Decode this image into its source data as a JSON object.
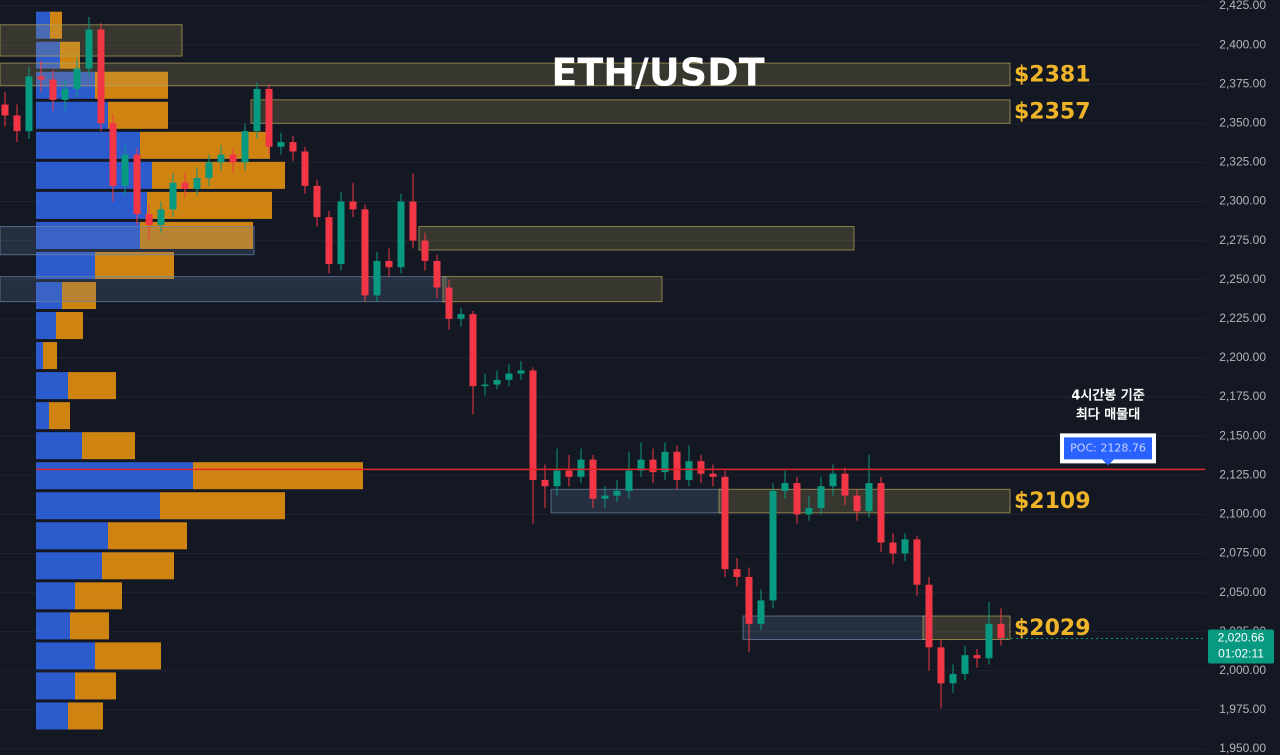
{
  "chart_data": {
    "type": "candlestick",
    "title": "ETH/USDT",
    "ylim": [
      1950,
      2425
    ],
    "yticks": [
      {
        "value": 2425,
        "label": "2,425.00"
      },
      {
        "value": 2400,
        "label": "2,400.00"
      },
      {
        "value": 2375,
        "label": "2,375.00"
      },
      {
        "value": 2350,
        "label": "2,350.00"
      },
      {
        "value": 2325,
        "label": "2,325.00"
      },
      {
        "value": 2300,
        "label": "2,300.00"
      },
      {
        "value": 2275,
        "label": "2,275.00"
      },
      {
        "value": 2250,
        "label": "2,250.00"
      },
      {
        "value": 2225,
        "label": "2,225.00"
      },
      {
        "value": 2200,
        "label": "2,200.00"
      },
      {
        "value": 2175,
        "label": "2,175.00"
      },
      {
        "value": 2150,
        "label": "2,150.00"
      },
      {
        "value": 2125,
        "label": "2,125.00"
      },
      {
        "value": 2100,
        "label": "2,100.00"
      },
      {
        "value": 2075,
        "label": "2,075.00"
      },
      {
        "value": 2050,
        "label": "2,050.00"
      },
      {
        "value": 2025,
        "label": "2,025.00"
      },
      {
        "value": 2000,
        "label": "2,000.00"
      },
      {
        "value": 1975,
        "label": "1,975.00"
      },
      {
        "value": 1950,
        "label": "1,950.00"
      }
    ],
    "grid": true,
    "up_color": "#089981",
    "down_color": "#f23645",
    "ohlc": [
      [
        2362,
        2370,
        2348,
        2355
      ],
      [
        2355,
        2362,
        2338,
        2345
      ],
      [
        2345,
        2386,
        2340,
        2380
      ],
      [
        2380,
        2390,
        2370,
        2378
      ],
      [
        2378,
        2384,
        2358,
        2365
      ],
      [
        2365,
        2378,
        2358,
        2372
      ],
      [
        2372,
        2392,
        2366,
        2385
      ],
      [
        2385,
        2418,
        2380,
        2410
      ],
      [
        2410,
        2414,
        2345,
        2350
      ],
      [
        2350,
        2356,
        2300,
        2310
      ],
      [
        2310,
        2336,
        2304,
        2330
      ],
      [
        2330,
        2334,
        2285,
        2292
      ],
      [
        2292,
        2298,
        2276,
        2285
      ],
      [
        2285,
        2300,
        2280,
        2295
      ],
      [
        2295,
        2318,
        2290,
        2312
      ],
      [
        2312,
        2318,
        2302,
        2308
      ],
      [
        2308,
        2322,
        2304,
        2315
      ],
      [
        2315,
        2330,
        2310,
        2325
      ],
      [
        2325,
        2336,
        2320,
        2330
      ],
      [
        2330,
        2334,
        2318,
        2325
      ],
      [
        2325,
        2350,
        2320,
        2345
      ],
      [
        2345,
        2376,
        2340,
        2372
      ],
      [
        2372,
        2375,
        2330,
        2335
      ],
      [
        2335,
        2344,
        2330,
        2338
      ],
      [
        2338,
        2342,
        2326,
        2332
      ],
      [
        2332,
        2335,
        2305,
        2310
      ],
      [
        2310,
        2314,
        2284,
        2290
      ],
      [
        2290,
        2294,
        2254,
        2260
      ],
      [
        2260,
        2306,
        2256,
        2300
      ],
      [
        2300,
        2312,
        2290,
        2295
      ],
      [
        2295,
        2298,
        2236,
        2240
      ],
      [
        2240,
        2268,
        2236,
        2262
      ],
      [
        2262,
        2270,
        2252,
        2258
      ],
      [
        2258,
        2305,
        2254,
        2300
      ],
      [
        2300,
        2318,
        2270,
        2275
      ],
      [
        2275,
        2280,
        2256,
        2262
      ],
      [
        2262,
        2266,
        2238,
        2245
      ],
      [
        2245,
        2250,
        2218,
        2225
      ],
      [
        2225,
        2232,
        2220,
        2228
      ],
      [
        2228,
        2230,
        2164,
        2182
      ],
      [
        2182,
        2190,
        2176,
        2183
      ],
      [
        2183,
        2192,
        2180,
        2186
      ],
      [
        2186,
        2196,
        2182,
        2190
      ],
      [
        2190,
        2198,
        2186,
        2192
      ],
      [
        2192,
        2194,
        2094,
        2122
      ],
      [
        2122,
        2132,
        2104,
        2118
      ],
      [
        2118,
        2142,
        2112,
        2128
      ],
      [
        2128,
        2138,
        2118,
        2124
      ],
      [
        2124,
        2142,
        2120,
        2135
      ],
      [
        2135,
        2138,
        2104,
        2110
      ],
      [
        2110,
        2118,
        2104,
        2112
      ],
      [
        2112,
        2122,
        2108,
        2115
      ],
      [
        2115,
        2140,
        2110,
        2128
      ],
      [
        2128,
        2146,
        2124,
        2135
      ],
      [
        2135,
        2142,
        2120,
        2127
      ],
      [
        2127,
        2146,
        2122,
        2140
      ],
      [
        2140,
        2144,
        2116,
        2122
      ],
      [
        2122,
        2144,
        2118,
        2134
      ],
      [
        2134,
        2138,
        2120,
        2126
      ],
      [
        2126,
        2132,
        2118,
        2124
      ],
      [
        2124,
        2128,
        2060,
        2065
      ],
      [
        2065,
        2072,
        2054,
        2060
      ],
      [
        2060,
        2066,
        2012,
        2030
      ],
      [
        2030,
        2052,
        2026,
        2045
      ],
      [
        2045,
        2120,
        2040,
        2115
      ],
      [
        2115,
        2128,
        2110,
        2120
      ],
      [
        2120,
        2124,
        2094,
        2100
      ],
      [
        2100,
        2112,
        2096,
        2104
      ],
      [
        2104,
        2124,
        2100,
        2118
      ],
      [
        2118,
        2132,
        2112,
        2126
      ],
      [
        2126,
        2130,
        2106,
        2112
      ],
      [
        2112,
        2116,
        2096,
        2102
      ],
      [
        2102,
        2138,
        2098,
        2120
      ],
      [
        2120,
        2124,
        2076,
        2082
      ],
      [
        2082,
        2088,
        2068,
        2075
      ],
      [
        2075,
        2088,
        2070,
        2084
      ],
      [
        2084,
        2086,
        2048,
        2055
      ],
      [
        2055,
        2060,
        2000,
        2015
      ],
      [
        2015,
        2020,
        1976,
        1992
      ],
      [
        1992,
        2004,
        1986,
        1998
      ],
      [
        1998,
        2016,
        1994,
        2010
      ],
      [
        2010,
        2014,
        2002,
        2008
      ],
      [
        2008,
        2044,
        2004,
        2030
      ],
      [
        2030,
        2040,
        2016,
        2020.66
      ]
    ],
    "profile": {
      "bins": [
        2422,
        2402.8,
        2383.6,
        2364.4,
        2345.2,
        2326,
        2306.8,
        2287.6,
        2268.4,
        2249.2,
        2230,
        2210.8,
        2191.6,
        2172.4,
        2153.2,
        2134,
        2114.8,
        2095.6,
        2076.4,
        2057.2,
        2038,
        2018.8,
        1999.6,
        1980.4,
        1961.2
      ],
      "buy": [
        14,
        24,
        59,
        72,
        104,
        116,
        111,
        104,
        59,
        26,
        20,
        7,
        32,
        13,
        46,
        157,
        124,
        72,
        66,
        39,
        34,
        59,
        39,
        32
      ],
      "sell": [
        12,
        20,
        73,
        60,
        130,
        133,
        125,
        113,
        79,
        34,
        27,
        14,
        48,
        21,
        53,
        170,
        125,
        79,
        72,
        47,
        39,
        66,
        41,
        35
      ],
      "buy_color": "#2d5fd8",
      "sell_color": "#d98a12"
    },
    "zones": [
      {
        "top": 2413,
        "bottom": 2393,
        "start": 0,
        "end": 14,
        "color": "#b8a65a"
      },
      {
        "top": 2388.5,
        "bottom": 2374,
        "start": 0,
        "end": 83,
        "color": "#b8a65a",
        "label": "$2381"
      },
      {
        "top": 2365,
        "bottom": 2350,
        "start": 21,
        "end": 83,
        "color": "#b8a65a",
        "label": "$2357"
      },
      {
        "top": 2284,
        "bottom": 2266,
        "start": 0,
        "end": 20,
        "color": "#6a86a8"
      },
      {
        "top": 2284,
        "bottom": 2269,
        "start": 35,
        "end": 70,
        "color": "#b8a65a"
      },
      {
        "top": 2252,
        "bottom": 2236,
        "start": 0,
        "end": 36,
        "color": "#6a86a8"
      },
      {
        "top": 2252,
        "bottom": 2236,
        "start": 37,
        "end": 54,
        "color": "#b8a65a"
      },
      {
        "top": 2116,
        "bottom": 2101,
        "start": 46,
        "end": 59,
        "color": "#6a86a8"
      },
      {
        "top": 2116,
        "bottom": 2101,
        "start": 60,
        "end": 83,
        "color": "#b8a65a",
        "label": "$2109"
      },
      {
        "top": 2035,
        "bottom": 2020,
        "start": 62,
        "end": 76,
        "color": "#6a86a8"
      },
      {
        "top": 2035,
        "bottom": 2020,
        "start": 77,
        "end": 83,
        "color": "#b8a65a",
        "label": "$2029"
      }
    ],
    "poc": {
      "value": 2128.76,
      "label": "POC: 2128.76",
      "color": "#e0262b"
    },
    "annotation": [
      "4시간봉 기준",
      "최다 매물대"
    ],
    "last_price": {
      "value": 2020.66,
      "label": "2,020.66",
      "countdown": "01:02:11",
      "color": "#089981"
    }
  }
}
